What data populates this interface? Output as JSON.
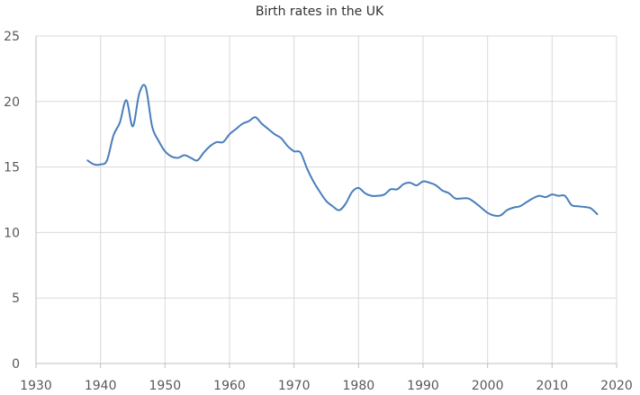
{
  "chart_data": {
    "type": "line",
    "title": "Birth rates in the UK",
    "xlabel": "",
    "ylabel": "",
    "xlim": [
      1930,
      2020
    ],
    "ylim": [
      0,
      25
    ],
    "x_ticks": [
      1930,
      1940,
      1950,
      1960,
      1970,
      1980,
      1990,
      2000,
      2010,
      2020
    ],
    "y_ticks": [
      0,
      5,
      10,
      15,
      20,
      25
    ],
    "grid": true,
    "legend": "none",
    "color": "#4a7ebb",
    "series": [
      {
        "x": [
          1938,
          1939,
          1940,
          1941,
          1942,
          1943,
          1944,
          1945,
          1946,
          1947,
          1948,
          1949,
          1950,
          1951,
          1952,
          1953,
          1954,
          1955,
          1956,
          1957,
          1958,
          1959,
          1960,
          1961,
          1962,
          1963,
          1964,
          1965,
          1966,
          1967,
          1968,
          1969,
          1970,
          1971,
          1972,
          1973,
          1974,
          1975,
          1976,
          1977,
          1978,
          1979,
          1980,
          1981,
          1982,
          1983,
          1984,
          1985,
          1986,
          1987,
          1988,
          1989,
          1990,
          1991,
          1992,
          1993,
          1994,
          1995,
          1996,
          1997,
          1998,
          1999,
          2000,
          2001,
          2002,
          2003,
          2004,
          2005,
          2006,
          2007,
          2008,
          2009,
          2010,
          2011,
          2012,
          2013,
          2014,
          2015,
          2016,
          2017
        ],
        "values": [
          15.5,
          15.2,
          15.2,
          15.5,
          17.4,
          18.4,
          20.1,
          18.1,
          20.6,
          21.1,
          18.1,
          17.0,
          16.2,
          15.8,
          15.7,
          15.9,
          15.7,
          15.5,
          16.1,
          16.6,
          16.9,
          16.9,
          17.5,
          17.9,
          18.3,
          18.5,
          18.8,
          18.3,
          17.9,
          17.5,
          17.2,
          16.6,
          16.2,
          16.1,
          14.9,
          13.9,
          13.1,
          12.4,
          12.0,
          11.7,
          12.2,
          13.1,
          13.4,
          13.0,
          12.8,
          12.8,
          12.9,
          13.3,
          13.3,
          13.7,
          13.8,
          13.6,
          13.9,
          13.8,
          13.6,
          13.2,
          13.0,
          12.6,
          12.6,
          12.6,
          12.3,
          11.9,
          11.5,
          11.3,
          11.3,
          11.7,
          11.9,
          12.0,
          12.3,
          12.6,
          12.8,
          12.7,
          12.9,
          12.8,
          12.8,
          12.1,
          12.0,
          11.95,
          11.85,
          11.4
        ]
      }
    ]
  }
}
